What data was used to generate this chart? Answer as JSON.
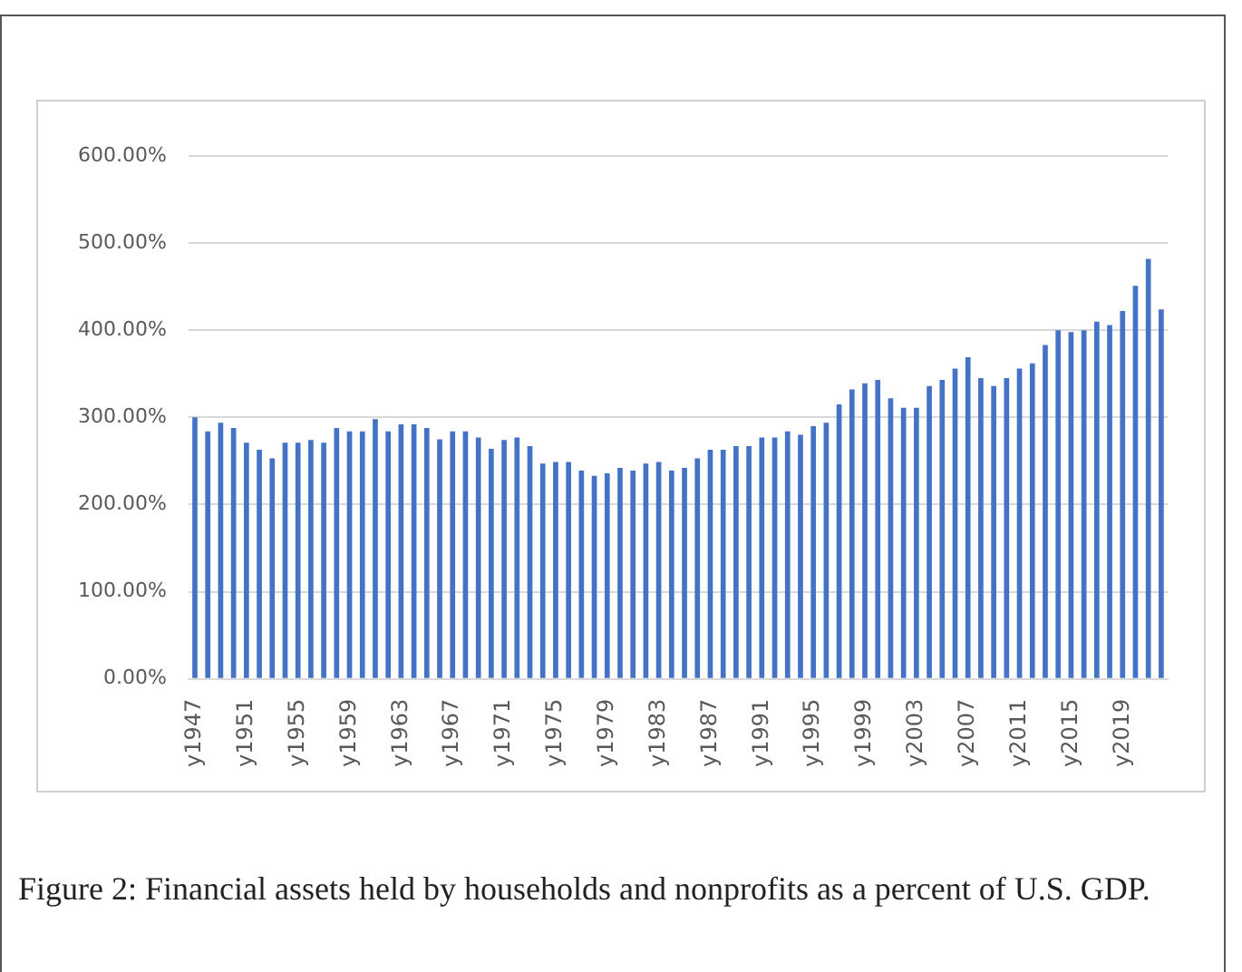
{
  "chart_data": {
    "type": "bar",
    "categories": [
      "y1947",
      null,
      null,
      null,
      "y1951",
      null,
      null,
      null,
      "y1955",
      null,
      null,
      null,
      "y1959",
      null,
      null,
      null,
      "y1963",
      null,
      null,
      null,
      "y1967",
      null,
      null,
      null,
      "y1971",
      null,
      null,
      null,
      "y1975",
      null,
      null,
      null,
      "y1979",
      null,
      null,
      null,
      "y1983",
      null,
      null,
      null,
      "y1987",
      null,
      null,
      null,
      "y1991",
      null,
      null,
      null,
      "y1995",
      null,
      null,
      null,
      "y1999",
      null,
      null,
      null,
      "y2003",
      null,
      null,
      null,
      "y2007",
      null,
      null,
      null,
      "y2011",
      null,
      null,
      null,
      "y2015",
      null,
      null,
      null,
      "y2019",
      null,
      null,
      null
    ],
    "values": [
      300,
      284,
      294,
      288,
      271,
      263,
      253,
      271,
      271,
      274,
      271,
      288,
      284,
      284,
      298,
      284,
      292,
      292,
      288,
      275,
      284,
      284,
      277,
      264,
      274,
      277,
      267,
      247,
      249,
      249,
      239,
      233,
      236,
      242,
      239,
      247,
      249,
      239,
      242,
      253,
      263,
      263,
      267,
      267,
      277,
      277,
      284,
      280,
      290,
      294,
      315,
      332,
      339,
      343,
      322,
      311,
      311,
      336,
      343,
      356,
      369,
      345,
      336,
      345,
      356,
      362,
      383,
      400,
      398,
      400,
      410,
      406,
      422,
      451,
      482,
      424
    ],
    "color": "#4472c4",
    "ylim": [
      0,
      600
    ],
    "yticks": [
      {
        "value": 0,
        "label": "0.00%"
      },
      {
        "value": 100,
        "label": "100.00%"
      },
      {
        "value": 200,
        "label": "200.00%"
      },
      {
        "value": 300,
        "label": "300.00%"
      },
      {
        "value": 400,
        "label": "400.00%"
      },
      {
        "value": 500,
        "label": "500.00%"
      },
      {
        "value": 600,
        "label": "600.00%"
      }
    ],
    "grid": "y",
    "annotations": [
      "Figure 2: Financial assets held by households and nonprofits as a percent of U.S. GDP."
    ]
  }
}
